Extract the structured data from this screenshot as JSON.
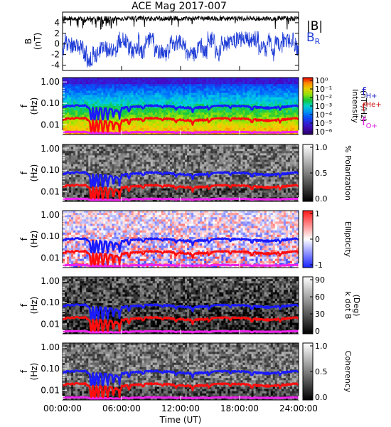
{
  "title": "ACE Mag 2017-007",
  "x_axis": {
    "label": "Time (UT)",
    "ticks": [
      "00:00:00",
      "06:00:00",
      "12:00:00",
      "18:00:00",
      "24:00:00"
    ],
    "range_hours": [
      0,
      24
    ]
  },
  "legend_b": {
    "total": "|B|",
    "radial": "B",
    "radial_sub": "R"
  },
  "gyro_labels": [
    {
      "base": "f",
      "sub": "H+",
      "color": "#2222cc"
    },
    {
      "base": "f",
      "sup": "He+",
      "color": "#cc1111"
    },
    {
      "base": "f",
      "sub": "O+",
      "color": "#dd22dd"
    }
  ],
  "colors": {
    "total_field": "#000000",
    "radial_field": "#1f3dd6",
    "f_H": "#1a1aff",
    "f_He": "#ff0d0d",
    "f_O": "#ee22ee"
  },
  "chart_data": [
    {
      "type": "line",
      "panel": "magnetic field",
      "ylabel": "B",
      "yunit": "(nT)",
      "ylim": [
        -5,
        6
      ],
      "yticks": [
        "4",
        "2",
        "0",
        "-2",
        "-4"
      ],
      "xlim": [
        0,
        24
      ],
      "series": [
        {
          "name": "|B|",
          "approx_level_nT": 4.8
        },
        {
          "name": "BR",
          "approx_range_nT": [
            -4.9,
            3.0
          ]
        }
      ]
    },
    {
      "type": "heatmap",
      "panel": "power spectrum",
      "ylabel": "f",
      "yunit": "(Hz)",
      "yscale": "log",
      "yticks": [
        "1.00",
        "0.10",
        "0.01"
      ],
      "colorbar": {
        "label": "Intensity",
        "unit": "(nT²/Hz)",
        "colormap": "rainbow",
        "ticks": [
          "10⁰",
          "10⁻¹",
          "10⁻²",
          "10⁻³",
          "10⁻⁴",
          "10⁻⁵",
          "10⁻⁶"
        ]
      },
      "gyrofrequencies_Hz": {
        "H+": 0.07,
        "He+": 0.018,
        "O+": 0.0045
      }
    },
    {
      "type": "heatmap",
      "panel": "polarization",
      "ylabel": "f",
      "yunit": "(Hz)",
      "yscale": "log",
      "yticks": [
        "1.00",
        "0.10",
        "0.01"
      ],
      "colorbar": {
        "label": "% Polarization",
        "colormap": "gray",
        "ticks": [
          "1.0",
          "0.5",
          "0.0"
        ]
      }
    },
    {
      "type": "heatmap",
      "panel": "ellipticity",
      "ylabel": "f",
      "yunit": "(Hz)",
      "yscale": "log",
      "yticks": [
        "1.00",
        "0.10",
        "0.01"
      ],
      "colorbar": {
        "label": "Ellipticity",
        "colormap": "blue-white-red",
        "ticks": [
          "1",
          "0",
          "-1"
        ]
      }
    },
    {
      "type": "heatmap",
      "panel": "wave normal angle",
      "ylabel": "f",
      "yunit": "(Hz)",
      "yscale": "log",
      "yticks": [
        "1.00",
        "0.10",
        "0.01"
      ],
      "colorbar": {
        "label": "k dot B",
        "unit": "(Deg)",
        "colormap": "gray",
        "ticks": [
          "90",
          "60",
          "30",
          "0"
        ]
      }
    },
    {
      "type": "heatmap",
      "panel": "coherency",
      "ylabel": "f",
      "yunit": "(Hz)",
      "yscale": "log",
      "yticks": [
        "1.00",
        "0.10",
        "0.01"
      ],
      "colorbar": {
        "label": "Coherency",
        "colormap": "gray",
        "ticks": [
          "1.0",
          "0.5",
          "0.0"
        ]
      }
    }
  ]
}
